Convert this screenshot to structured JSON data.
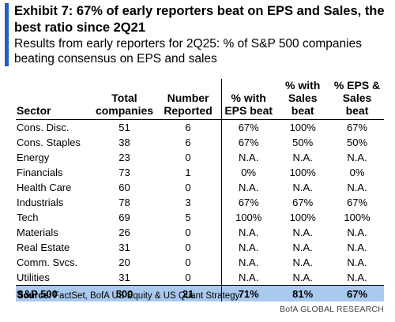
{
  "title": "Exhibit 7: 67% of early reporters beat on EPS and Sales, the best ratio since 2Q21",
  "subtitle": "Results from early reporters for 2Q25: % of S&P 500 companies beating consensus on EPS and sales",
  "table": {
    "headers": {
      "sector": "Sector",
      "total_line1": "Total",
      "total_line2": "companies",
      "reported_line1": "Number",
      "reported_line2": "Reported",
      "eps_line1": "% with",
      "eps_line2": "EPS beat",
      "sales_line1": "% with",
      "sales_line2": "Sales beat",
      "both_line1": "% EPS &",
      "both_line2": "Sales beat"
    },
    "rows": [
      {
        "sector": "Cons. Disc.",
        "total": "51",
        "reported": "6",
        "eps": "67%",
        "sales": "100%",
        "both": "67%"
      },
      {
        "sector": "Cons. Staples",
        "total": "38",
        "reported": "6",
        "eps": "67%",
        "sales": "50%",
        "both": "50%"
      },
      {
        "sector": "Energy",
        "total": "23",
        "reported": "0",
        "eps": "N.A.",
        "sales": "N.A.",
        "both": "N.A."
      },
      {
        "sector": "Financials",
        "total": "73",
        "reported": "1",
        "eps": "0%",
        "sales": "100%",
        "both": "0%"
      },
      {
        "sector": "Health Care",
        "total": "60",
        "reported": "0",
        "eps": "N.A.",
        "sales": "N.A.",
        "both": "N.A."
      },
      {
        "sector": "Industrials",
        "total": "78",
        "reported": "3",
        "eps": "67%",
        "sales": "67%",
        "both": "67%"
      },
      {
        "sector": "Tech",
        "total": "69",
        "reported": "5",
        "eps": "100%",
        "sales": "100%",
        "both": "100%"
      },
      {
        "sector": "Materials",
        "total": "26",
        "reported": "0",
        "eps": "N.A.",
        "sales": "N.A.",
        "both": "N.A."
      },
      {
        "sector": "Real Estate",
        "total": "31",
        "reported": "0",
        "eps": "N.A.",
        "sales": "N.A.",
        "both": "N.A."
      },
      {
        "sector": "Comm. Svcs.",
        "total": "20",
        "reported": "0",
        "eps": "N.A.",
        "sales": "N.A.",
        "both": "N.A."
      },
      {
        "sector": "Utilities",
        "total": "31",
        "reported": "0",
        "eps": "N.A.",
        "sales": "N.A.",
        "both": "N.A."
      }
    ],
    "total_row": {
      "sector": "S&P 500",
      "total": "500",
      "reported": "21",
      "eps": "71%",
      "sales": "81%",
      "both": "67%"
    }
  },
  "source_label": "Source:",
  "source_text": " FactSet, BofA US Equity & US Quant Strategy",
  "brand": "BofA GLOBAL RESEARCH",
  "colors": {
    "accent_bar": "#1f5fbf",
    "total_row_bg": "#a9c9ee"
  }
}
